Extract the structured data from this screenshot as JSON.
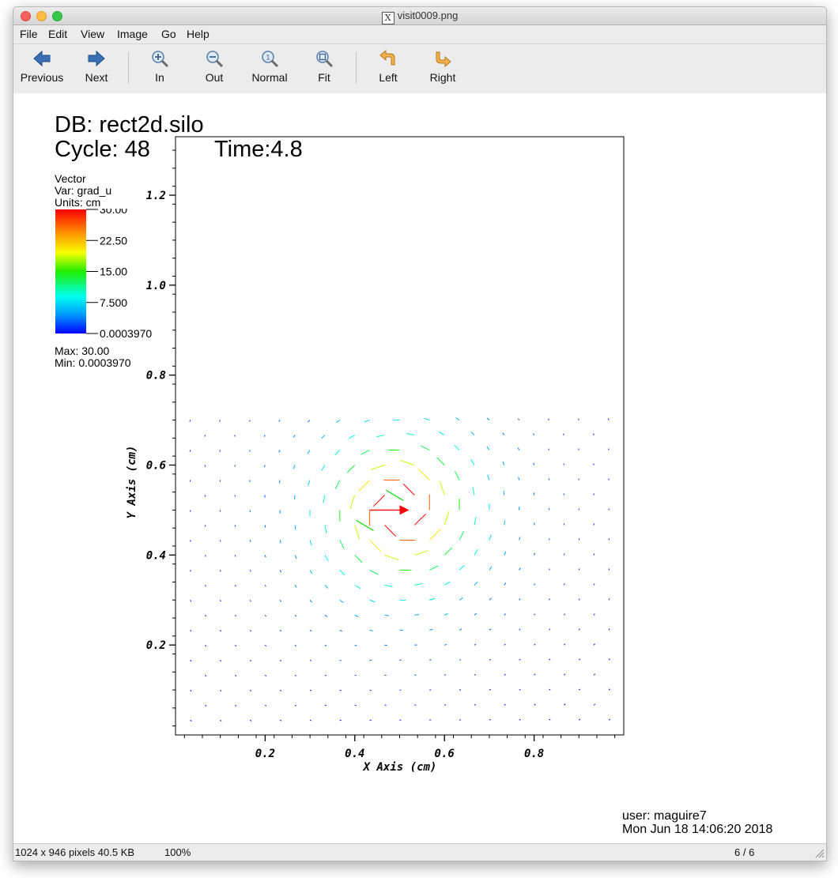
{
  "window": {
    "title": "visit0009.png"
  },
  "menu": [
    "File",
    "Edit",
    "View",
    "Image",
    "Go",
    "Help"
  ],
  "toolbar": {
    "previous": "Previous",
    "next": "Next",
    "zoom_in": "In",
    "zoom_out": "Out",
    "normal": "Normal",
    "fit": "Fit",
    "rotate_left": "Left",
    "rotate_right": "Right"
  },
  "plot": {
    "db": "DB: rect2d.silo",
    "cycle": "Cycle: 48",
    "time": "Time:4.8",
    "legend": {
      "type": "Vector",
      "var": "Var: grad_u",
      "units": "Units: cm",
      "max": "Max:  30.00",
      "min": "Min:  0.0003970",
      "ticks": [
        "30.00",
        "22.50",
        "15.00",
        "7.500",
        "0.0003970"
      ]
    },
    "user": "user: maguire7",
    "timestamp": "Mon Jun 18 14:06:20 2018"
  },
  "chart_data": {
    "type": "vector",
    "xlabel": "X Axis  (cm)",
    "ylabel": "Y Axis  (cm)",
    "xlim": [
      0.0,
      1.0
    ],
    "ylim": [
      0.0,
      1.33
    ],
    "x_ticks": [
      "0.2",
      "0.4",
      "0.6",
      "0.8"
    ],
    "y_ticks": [
      "0.2",
      "0.4",
      "0.6",
      "0.8",
      "1.0",
      "1.2"
    ],
    "color_range": [
      0.000397,
      30.0
    ],
    "peak_vector": {
      "x": 0.5,
      "y": 0.5,
      "magnitude": 30.0,
      "direction": "+x"
    },
    "colors": {
      "high": "#ff0000",
      "mid": "#00e000",
      "low": "#0000ff"
    }
  },
  "status": {
    "info": "1024 x 946 pixels  40.5 KB",
    "zoom": "100%",
    "page": "6 / 6"
  }
}
